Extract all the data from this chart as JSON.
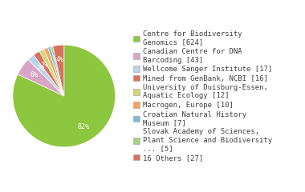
{
  "labels": [
    "Centre for Biodiversity\nGenomics [624]",
    "Canadian Centre for DNA\nBarcoding [43]",
    "Wellcome Sanger Institute [17]",
    "Mined from GenBank, NCBI [16]",
    "University of Duisburg-Essen,\nAquatic Ecology [12]",
    "Macrogen, Europe [10]",
    "Croatian Natural History\nMuseum [7]",
    "Slovak Academy of Sciences,\nPlant Science and Biodiversity\n... [5]",
    "16 Others [27]"
  ],
  "values": [
    624,
    43,
    17,
    16,
    12,
    10,
    7,
    5,
    27
  ],
  "colors": [
    "#8dc63f",
    "#d9a5c7",
    "#b8d4e8",
    "#d4735e",
    "#d6d675",
    "#f4a460",
    "#85b8d4",
    "#a8d08d",
    "#d4735e"
  ],
  "font_size": 6.5,
  "text_color": "#404040",
  "bg_color": "#ffffff",
  "startangle": 90,
  "pctdistance": 0.72
}
